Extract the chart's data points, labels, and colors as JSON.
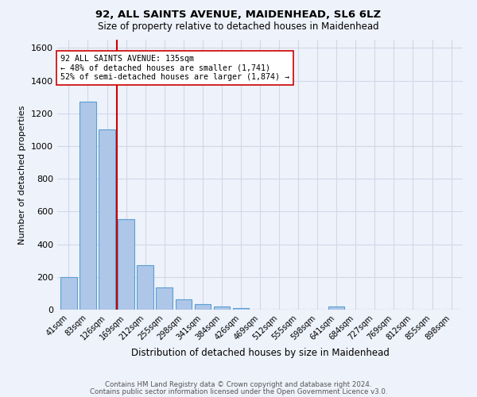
{
  "title": "92, ALL SAINTS AVENUE, MAIDENHEAD, SL6 6LZ",
  "subtitle": "Size of property relative to detached houses in Maidenhead",
  "xlabel": "Distribution of detached houses by size in Maidenhead",
  "ylabel": "Number of detached properties",
  "footnote1": "Contains HM Land Registry data © Crown copyright and database right 2024.",
  "footnote2": "Contains public sector information licensed under the Open Government Licence v3.0.",
  "categories": [
    "41sqm",
    "83sqm",
    "126sqm",
    "169sqm",
    "212sqm",
    "255sqm",
    "298sqm",
    "341sqm",
    "384sqm",
    "426sqm",
    "469sqm",
    "512sqm",
    "555sqm",
    "598sqm",
    "641sqm",
    "684sqm",
    "727sqm",
    "769sqm",
    "812sqm",
    "855sqm",
    "898sqm"
  ],
  "values": [
    197,
    1270,
    1100,
    555,
    270,
    135,
    63,
    35,
    18,
    12,
    0,
    0,
    0,
    0,
    18,
    0,
    0,
    0,
    0,
    0,
    0
  ],
  "bar_color": "#aec6e8",
  "bar_edge_color": "#5a9fd4",
  "grid_color": "#d0d8e8",
  "background_color": "#eef2fa",
  "vline_color": "#cc0000",
  "annotation_text": "92 ALL SAINTS AVENUE: 135sqm\n← 48% of detached houses are smaller (1,741)\n52% of semi-detached houses are larger (1,874) →",
  "annotation_box_color": "#ffffff",
  "annotation_box_edge": "#cc0000",
  "ylim": [
    0,
    1650
  ],
  "yticks": [
    0,
    200,
    400,
    600,
    800,
    1000,
    1200,
    1400,
    1600
  ]
}
